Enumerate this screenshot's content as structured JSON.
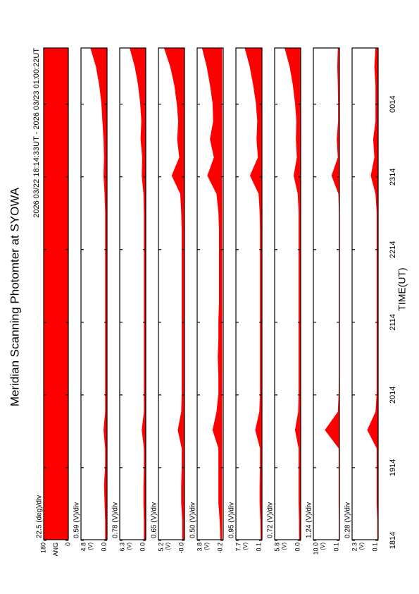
{
  "chart_data": {
    "type": "area",
    "title": "Meridian Scanning Photomter at SYOWA",
    "subtitle": "2026 03/22 18:14:33UT - 2026 03/23 01:00:22UT",
    "xlabel": "TIME(UT)",
    "color": "#ff0000",
    "xlim": [
      18.2425,
      25.0061
    ],
    "xticks": [
      {
        "value": 18.2333,
        "label": "1814"
      },
      {
        "value": 19.2333,
        "label": "1914"
      },
      {
        "value": 20.2333,
        "label": "2014"
      },
      {
        "value": 21.2333,
        "label": "2114"
      },
      {
        "value": 22.2333,
        "label": "2214"
      },
      {
        "value": 23.2333,
        "label": "2314"
      },
      {
        "value": 24.2333,
        "label": "0014"
      }
    ],
    "x": [
      18.25,
      18.5,
      18.75,
      19.0,
      19.25,
      19.5,
      19.75,
      20.0,
      20.25,
      20.5,
      20.75,
      21.0,
      21.25,
      21.5,
      21.75,
      22.0,
      22.25,
      22.5,
      22.75,
      23.0,
      23.25,
      23.5,
      23.75,
      24.0,
      24.25,
      24.5,
      24.75,
      25.0
    ],
    "angle_panel": {
      "label": "ANG",
      "scale": "22.5 (deg)/div",
      "ylim": [
        0,
        180
      ],
      "yticks": [
        0,
        180
      ]
    },
    "panels": [
      {
        "scale": "0.59 (V)/div",
        "unit": "(V)",
        "ylim": [
          0,
          4.8
        ],
        "yticks": [
          {
            "value": 0,
            "label": "0.0"
          },
          4.8
        ],
        "values": [
          0.3,
          0.3,
          0.4,
          0.5,
          0.3,
          0.3,
          0.6,
          0.3,
          0.3,
          0.3,
          0.3,
          0.3,
          0.3,
          0.3,
          0.3,
          0.3,
          0.3,
          0.3,
          0.3,
          0.4,
          0.6,
          0.5,
          0.6,
          0.8,
          1.0,
          1.4,
          2.0,
          3.0
        ]
      },
      {
        "scale": "0.78 (V)/div",
        "unit": "(V)",
        "ylim": [
          0,
          6.3
        ],
        "yticks": [
          {
            "value": 0,
            "label": "0.0"
          },
          6.3
        ],
        "values": [
          0.4,
          0.4,
          0.5,
          0.5,
          0.4,
          0.4,
          0.9,
          0.4,
          0.4,
          0.4,
          0.4,
          0.4,
          0.4,
          0.4,
          0.4,
          0.4,
          0.4,
          0.4,
          0.4,
          0.5,
          0.9,
          0.8,
          1.2,
          1.0,
          1.3,
          1.8,
          2.6,
          3.8
        ]
      },
      {
        "scale": "0.65 (V)/div",
        "unit": "(V)",
        "ylim": [
          0,
          5.2
        ],
        "yticks": [
          {
            "value": 0,
            "label": "-0.0"
          },
          5.2
        ],
        "values": [
          0.4,
          0.4,
          0.6,
          0.6,
          0.5,
          0.5,
          1.3,
          0.6,
          0.5,
          0.5,
          0.5,
          0.5,
          0.5,
          0.5,
          0.5,
          0.5,
          0.5,
          0.5,
          0.6,
          0.8,
          2.5,
          1.0,
          1.4,
          1.2,
          1.5,
          2.0,
          2.8,
          4.0
        ]
      },
      {
        "scale": "0.50 (V)/div",
        "unit": "(V)",
        "ylim": [
          -0.2,
          3.8
        ],
        "yticks": [
          -0.2,
          3.8
        ],
        "values": [
          0.2,
          0.3,
          0.5,
          0.5,
          0.5,
          0.5,
          1.4,
          0.8,
          0.5,
          0.5,
          0.6,
          0.5,
          0.5,
          0.4,
          0.4,
          0.4,
          0.4,
          0.4,
          0.5,
          0.8,
          2.2,
          1.2,
          1.8,
          1.3,
          1.4,
          1.8,
          2.3,
          3.0
        ]
      },
      {
        "scale": "0.95 (V)/div",
        "unit": "(V)",
        "ylim": [
          0.1,
          7.7
        ],
        "yticks": [
          0.1,
          7.7
        ],
        "values": [
          0.4,
          0.5,
          0.7,
          0.7,
          0.6,
          0.6,
          2.0,
          0.8,
          0.6,
          0.6,
          0.6,
          0.6,
          0.6,
          0.6,
          0.6,
          0.6,
          0.6,
          0.6,
          0.7,
          1.0,
          3.5,
          1.2,
          1.6,
          1.4,
          1.8,
          2.6,
          3.6,
          5.0
        ]
      },
      {
        "scale": "0.72 (V)/div",
        "unit": "(V)",
        "ylim": [
          0,
          5.8
        ],
        "yticks": [
          {
            "value": 0,
            "label": "0.0"
          },
          5.8
        ],
        "values": [
          0.3,
          0.3,
          0.4,
          0.4,
          0.4,
          0.4,
          1.2,
          0.5,
          0.4,
          0.4,
          0.4,
          0.4,
          0.4,
          0.4,
          0.4,
          0.4,
          0.4,
          0.4,
          0.4,
          0.6,
          1.5,
          0.8,
          1.0,
          0.9,
          1.2,
          1.7,
          2.4,
          3.5
        ]
      },
      {
        "scale": "1.24 (V)/div",
        "unit": "(V)",
        "ylim": [
          0.1,
          10
        ],
        "yticks": [
          0.1,
          {
            "value": 10,
            "label": "10.0"
          }
        ],
        "values": [
          0.2,
          0.2,
          0.3,
          0.3,
          0.3,
          0.3,
          5.5,
          0.6,
          0.3,
          0.2,
          0.2,
          0.2,
          0.2,
          0.2,
          0.2,
          0.2,
          0.2,
          0.2,
          0.2,
          0.4,
          3.0,
          0.6,
          1.0,
          0.5,
          0.5,
          0.6,
          0.8,
          0.6
        ]
      },
      {
        "scale": "0.28 (V)/div",
        "unit": "(V)",
        "ylim": [
          0.1,
          2.3
        ],
        "yticks": [
          0.1,
          2.3
        ],
        "values": [
          0.15,
          0.15,
          0.2,
          0.2,
          0.2,
          0.2,
          1.0,
          0.3,
          0.2,
          0.2,
          0.2,
          0.2,
          0.2,
          0.2,
          0.2,
          0.2,
          0.2,
          0.2,
          0.2,
          0.3,
          0.7,
          0.4,
          0.5,
          0.3,
          0.3,
          0.3,
          0.4,
          0.3
        ]
      }
    ]
  }
}
